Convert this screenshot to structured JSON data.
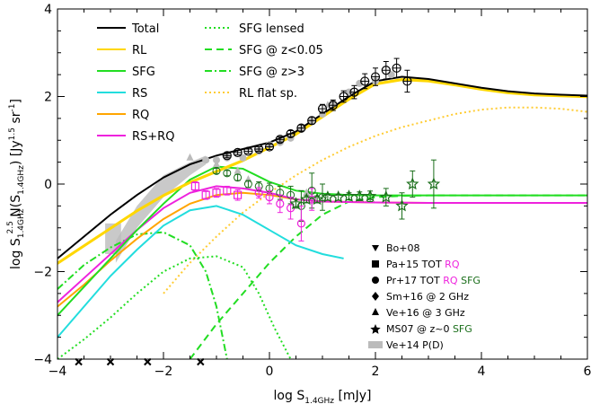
{
  "chart_data": {
    "type": "line",
    "xlabel": "log S",
    "xlabel_sub": "1.4GHz",
    "xlabel_unit": " [mJy]",
    "ylabel_prefix": "log S",
    "ylabel_sub": "1.4GHz",
    "ylabel_sup": "2.5",
    "ylabel_mid": " N(S",
    "ylabel_sub2": "1.4GHz",
    "ylabel_unit": ") [Jy",
    "ylabel_sup2": "1.5",
    "ylabel_end": " sr",
    "ylabel_sup3": "-1",
    "ylabel_close": "]",
    "xlim": [
      -4,
      6
    ],
    "ylim": [
      -4,
      4
    ],
    "xticks": [
      -4,
      -2,
      0,
      2,
      4,
      6
    ],
    "yticks": [
      -4,
      -2,
      0,
      2,
      4
    ],
    "grid": false,
    "legend_position": "top-left",
    "colors": {
      "total": "#000000",
      "rl": "#ffd700",
      "sfg": "#22dd22",
      "rs": "#22dddd",
      "rq": "#ffa500",
      "rsrq": "#ee22dd",
      "dark_green": "#1a6e1a",
      "rl_flat": "#ffcc33",
      "grey": "#bbbbbb"
    },
    "legend": {
      "total": "Total",
      "rl": "RL",
      "sfg": "SFG",
      "rs": "RS",
      "rq": "RQ",
      "rsrq": "RS+RQ",
      "sfg_lensed": "SFG lensed",
      "sfg_lowz": "SFG @ z<0.05",
      "sfg_highz": "SFG @ z>3",
      "rl_flat": "RL flat sp."
    },
    "symbol_legend": [
      {
        "sym": "tri-down",
        "label": "Bo+08",
        "extra": []
      },
      {
        "sym": "square",
        "label": "Pa+15 TOT",
        "extra": [
          {
            "text": "RQ",
            "color": "#ee22dd"
          }
        ]
      },
      {
        "sym": "circle",
        "label": "Pr+17 TOT",
        "extra": [
          {
            "text": "RQ",
            "color": "#ee22dd"
          },
          {
            "text": "SFG",
            "color": "#1a6e1a"
          }
        ]
      },
      {
        "sym": "diamond",
        "label": "Sm+16 @ 2 GHz",
        "extra": []
      },
      {
        "sym": "tri-up",
        "label": "Ve+16 @ 3 GHz",
        "extra": []
      },
      {
        "sym": "star",
        "label": "MS07 @ z~0",
        "extra": [
          {
            "text": "SFG",
            "color": "#1a6e1a"
          }
        ]
      },
      {
        "sym": "greybox",
        "label": "Ve+14 P(D)",
        "extra": []
      }
    ],
    "series": [
      {
        "name": "Total",
        "style": "solid",
        "color": "#000000",
        "x": [
          -4,
          -3.5,
          -3,
          -2.5,
          -2,
          -1.5,
          -1,
          -0.5,
          0,
          0.5,
          1,
          1.5,
          2,
          2.5,
          3,
          3.5,
          4,
          4.5,
          5,
          5.5,
          6
        ],
        "y": [
          -1.7,
          -1.2,
          -0.7,
          -0.25,
          0.15,
          0.45,
          0.65,
          0.8,
          0.95,
          1.2,
          1.6,
          2.0,
          2.35,
          2.45,
          2.4,
          2.3,
          2.2,
          2.12,
          2.07,
          2.04,
          2.02
        ]
      },
      {
        "name": "RL",
        "style": "solid",
        "color": "#ffd700",
        "x": [
          -4,
          -3.5,
          -3,
          -2.5,
          -2,
          -1.5,
          -1,
          -0.5,
          0,
          0.5,
          1,
          1.5,
          2,
          2.5,
          3,
          3.5,
          4,
          4.5,
          5,
          5.5,
          6
        ],
        "y": [
          -1.8,
          -1.4,
          -1.0,
          -0.6,
          -0.25,
          0.05,
          0.3,
          0.55,
          0.85,
          1.15,
          1.55,
          1.95,
          2.3,
          2.4,
          2.37,
          2.28,
          2.18,
          2.1,
          2.05,
          2.03,
          2.01
        ]
      },
      {
        "name": "SFG",
        "style": "solid",
        "color": "#22dd22",
        "x": [
          -4,
          -3.5,
          -3,
          -2.5,
          -2,
          -1.5,
          -1,
          -0.5,
          0,
          0.5,
          1,
          1.5,
          2,
          2.5,
          3,
          4,
          5,
          6
        ],
        "y": [
          -3.0,
          -2.35,
          -1.7,
          -1.05,
          -0.45,
          0.1,
          0.4,
          0.35,
          0.05,
          -0.15,
          -0.22,
          -0.25,
          -0.26,
          -0.26,
          -0.26,
          -0.26,
          -0.26,
          -0.26
        ]
      },
      {
        "name": "RS",
        "style": "solid",
        "color": "#22dddd",
        "x": [
          -4,
          -3.5,
          -3,
          -2.5,
          -2,
          -1.5,
          -1,
          -0.5,
          0,
          0.5,
          1,
          1.4
        ],
        "y": [
          -3.5,
          -2.8,
          -2.1,
          -1.5,
          -0.95,
          -0.6,
          -0.5,
          -0.7,
          -1.05,
          -1.4,
          -1.6,
          -1.7
        ]
      },
      {
        "name": "RQ",
        "style": "solid",
        "color": "#ffa500",
        "x": [
          -4,
          -3.5,
          -3,
          -2.5,
          -2,
          -1.5,
          -1,
          -0.5,
          0,
          0.5,
          1,
          2,
          3,
          4,
          5,
          6
        ],
        "y": [
          -2.8,
          -2.3,
          -1.75,
          -1.25,
          -0.8,
          -0.45,
          -0.25,
          -0.2,
          -0.25,
          -0.35,
          -0.4,
          -0.42,
          -0.43,
          -0.43,
          -0.43,
          -0.43
        ]
      },
      {
        "name": "RS+RQ",
        "style": "solid",
        "color": "#ee22dd",
        "x": [
          -4,
          -3.5,
          -3,
          -2.5,
          -2,
          -1.5,
          -1,
          -0.5,
          0,
          0.5,
          1,
          2,
          3,
          4,
          5,
          6
        ],
        "y": [
          -2.7,
          -2.15,
          -1.6,
          -1.05,
          -0.55,
          -0.2,
          -0.05,
          -0.1,
          -0.2,
          -0.35,
          -0.4,
          -0.42,
          -0.43,
          -0.43,
          -0.43,
          -0.43
        ]
      },
      {
        "name": "SFG lensed",
        "style": "dotted",
        "color": "#22dd22",
        "x": [
          -4,
          -3.5,
          -3,
          -2.5,
          -2,
          -1.5,
          -1,
          -0.5,
          -0.2,
          0.1,
          0.4
        ],
        "y": [
          -4,
          -3.55,
          -3.05,
          -2.5,
          -2.0,
          -1.7,
          -1.65,
          -1.9,
          -2.5,
          -3.3,
          -4
        ]
      },
      {
        "name": "SFG @ z<0.05",
        "style": "dashed",
        "color": "#22dd22",
        "x": [
          -1.5,
          -1,
          -0.5,
          0,
          0.5,
          1,
          1.5,
          2,
          2.5,
          3,
          4,
          5,
          6
        ],
        "y": [
          -4,
          -3.2,
          -2.5,
          -1.8,
          -1.2,
          -0.7,
          -0.4,
          -0.3,
          -0.27,
          -0.26,
          -0.26,
          -0.26,
          -0.26
        ]
      },
      {
        "name": "SFG @ z>3",
        "style": "dashdot",
        "color": "#22dd22",
        "x": [
          -4,
          -3.5,
          -3,
          -2.5,
          -2,
          -1.5,
          -1.2,
          -1,
          -0.8
        ],
        "y": [
          -2.4,
          -1.85,
          -1.45,
          -1.15,
          -1.1,
          -1.4,
          -2.0,
          -2.8,
          -4
        ]
      },
      {
        "name": "RL flat sp.",
        "style": "dotted",
        "color": "#ffcc33",
        "x": [
          -2,
          -1.5,
          -1,
          -0.5,
          0,
          0.5,
          1,
          1.5,
          2,
          2.5,
          3,
          3.5,
          4,
          4.5,
          5,
          5.5,
          6
        ],
        "y": [
          -2.5,
          -1.8,
          -1.2,
          -0.65,
          -0.2,
          0.2,
          0.55,
          0.85,
          1.1,
          1.3,
          1.45,
          1.6,
          1.7,
          1.75,
          1.75,
          1.72,
          1.65
        ]
      }
    ],
    "ve14_band": {
      "x": [
        -2.9,
        -2.5,
        -2,
        -1.5,
        -1.2
      ],
      "upper": [
        -1.3,
        -0.5,
        0.2,
        0.5,
        0.65
      ],
      "lower": [
        -1.8,
        -1.0,
        -0.3,
        0.2,
        0.45
      ]
    },
    "ve14_low": {
      "x": [
        -3.1,
        -2.8
      ],
      "upper": [
        -0.9,
        -0.9
      ],
      "lower": [
        -1.6,
        -1.6
      ]
    },
    "points": {
      "total_circles": {
        "x": [
          -0.8,
          -0.6,
          -0.4,
          -0.2,
          0,
          0.2,
          0.4,
          0.6,
          0.8,
          1.0,
          1.2,
          1.4,
          1.6,
          1.8,
          2.0,
          2.2,
          2.4,
          2.6
        ],
        "y": [
          0.65,
          0.72,
          0.75,
          0.8,
          0.85,
          1.02,
          1.15,
          1.28,
          1.45,
          1.72,
          1.8,
          2.0,
          2.1,
          2.35,
          2.45,
          2.6,
          2.65,
          2.35
        ],
        "err": [
          0.05,
          0.05,
          0.05,
          0.05,
          0.06,
          0.06,
          0.07,
          0.07,
          0.08,
          0.1,
          0.12,
          0.13,
          0.15,
          0.17,
          0.2,
          0.2,
          0.22,
          0.25
        ]
      },
      "grey_points": {
        "x": [
          -1.2,
          -1.0,
          -0.8,
          -0.5,
          -0.2,
          0,
          0.2,
          0.4,
          0.6,
          0.8,
          1.0,
          1.2,
          1.5,
          1.7,
          2.0,
          2.3
        ],
        "y": [
          0.55,
          0.55,
          0.6,
          0.6,
          0.75,
          0.9,
          0.95,
          1.05,
          1.25,
          1.45,
          1.6,
          1.85,
          2.1,
          2.3,
          2.35,
          2.5
        ]
      },
      "grey_triangles": {
        "x": [
          -1.5,
          -1.0,
          -0.6,
          -0.4,
          0.7,
          1.1
        ],
        "y": [
          0.6,
          0.45,
          0.3,
          0.1,
          -0.2,
          1.8
        ]
      },
      "rq_squares": {
        "x": [
          -1.4,
          -1.2,
          -1.0,
          -0.8,
          -0.6
        ],
        "y": [
          -0.05,
          -0.25,
          -0.2,
          -0.15,
          -0.25
        ],
        "err": [
          0.1,
          0.1,
          0.1,
          0.1,
          0.12
        ]
      },
      "rq_circles": {
        "x": [
          -0.2,
          0,
          0.2,
          0.4,
          0.6,
          0.8
        ],
        "y": [
          -0.2,
          -0.3,
          -0.45,
          -0.55,
          -0.9,
          -0.35
        ],
        "err": [
          0.12,
          0.15,
          0.2,
          0.25,
          0.4,
          0.25
        ]
      },
      "sfg_circles": {
        "x": [
          -1.0,
          -0.8,
          -0.6,
          -0.4,
          -0.2,
          0,
          0.2,
          0.4,
          0.6,
          0.8,
          1.0
        ],
        "y": [
          0.3,
          0.25,
          0.15,
          0.0,
          -0.05,
          -0.1,
          -0.2,
          -0.25,
          -0.5,
          -0.15,
          -0.3
        ],
        "err": [
          0.06,
          0.06,
          0.07,
          0.08,
          0.1,
          0.12,
          0.15,
          0.2,
          0.35,
          0.4,
          0.3
        ]
      },
      "sfg_stars": {
        "x": [
          0.5,
          0.7,
          0.9,
          1.1,
          1.3,
          1.5,
          1.7,
          1.9,
          2.2,
          2.5,
          2.7,
          3.1
        ],
        "y": [
          -0.45,
          -0.35,
          -0.35,
          -0.3,
          -0.3,
          -0.28,
          -0.28,
          -0.28,
          -0.3,
          -0.5,
          0.0,
          0.0
        ],
        "err": [
          0.1,
          0.08,
          0.08,
          0.07,
          0.07,
          0.08,
          0.1,
          0.12,
          0.2,
          0.3,
          0.3,
          0.55
        ]
      },
      "x_markers": {
        "x": [
          -3.6,
          -3.0,
          -2.3,
          -1.3
        ],
        "y": [
          -4.1,
          -4.1,
          -4.1,
          -4.1
        ]
      }
    }
  }
}
